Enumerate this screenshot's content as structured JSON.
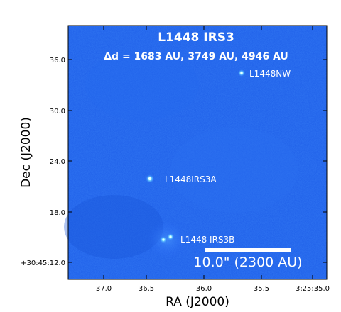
{
  "image": {
    "title": "L1448 IRS3",
    "subtitle": "Δd = 1683 AU, 3749 AU, 4946 AU",
    "xlabel": "RA (J2000)",
    "ylabel": "Dec (J2000)",
    "x_ticks": [
      "37.0",
      "36.5",
      "36.0",
      "35.5",
      "3:25:35.0"
    ],
    "y_ticks": [
      "36.0",
      "30.0",
      "24.0",
      "18.0",
      "+30:45:12.0"
    ],
    "sources": [
      {
        "label": "L1448NW"
      },
      {
        "label": "L1448IRS3A"
      },
      {
        "label": "L1448 IRS3B"
      }
    ],
    "scalebar_label": "10.0\" (2300 AU)",
    "colors": {
      "background_map": "#1f5fe6",
      "text": "#ffffff",
      "source": "#9ef2ff"
    }
  }
}
